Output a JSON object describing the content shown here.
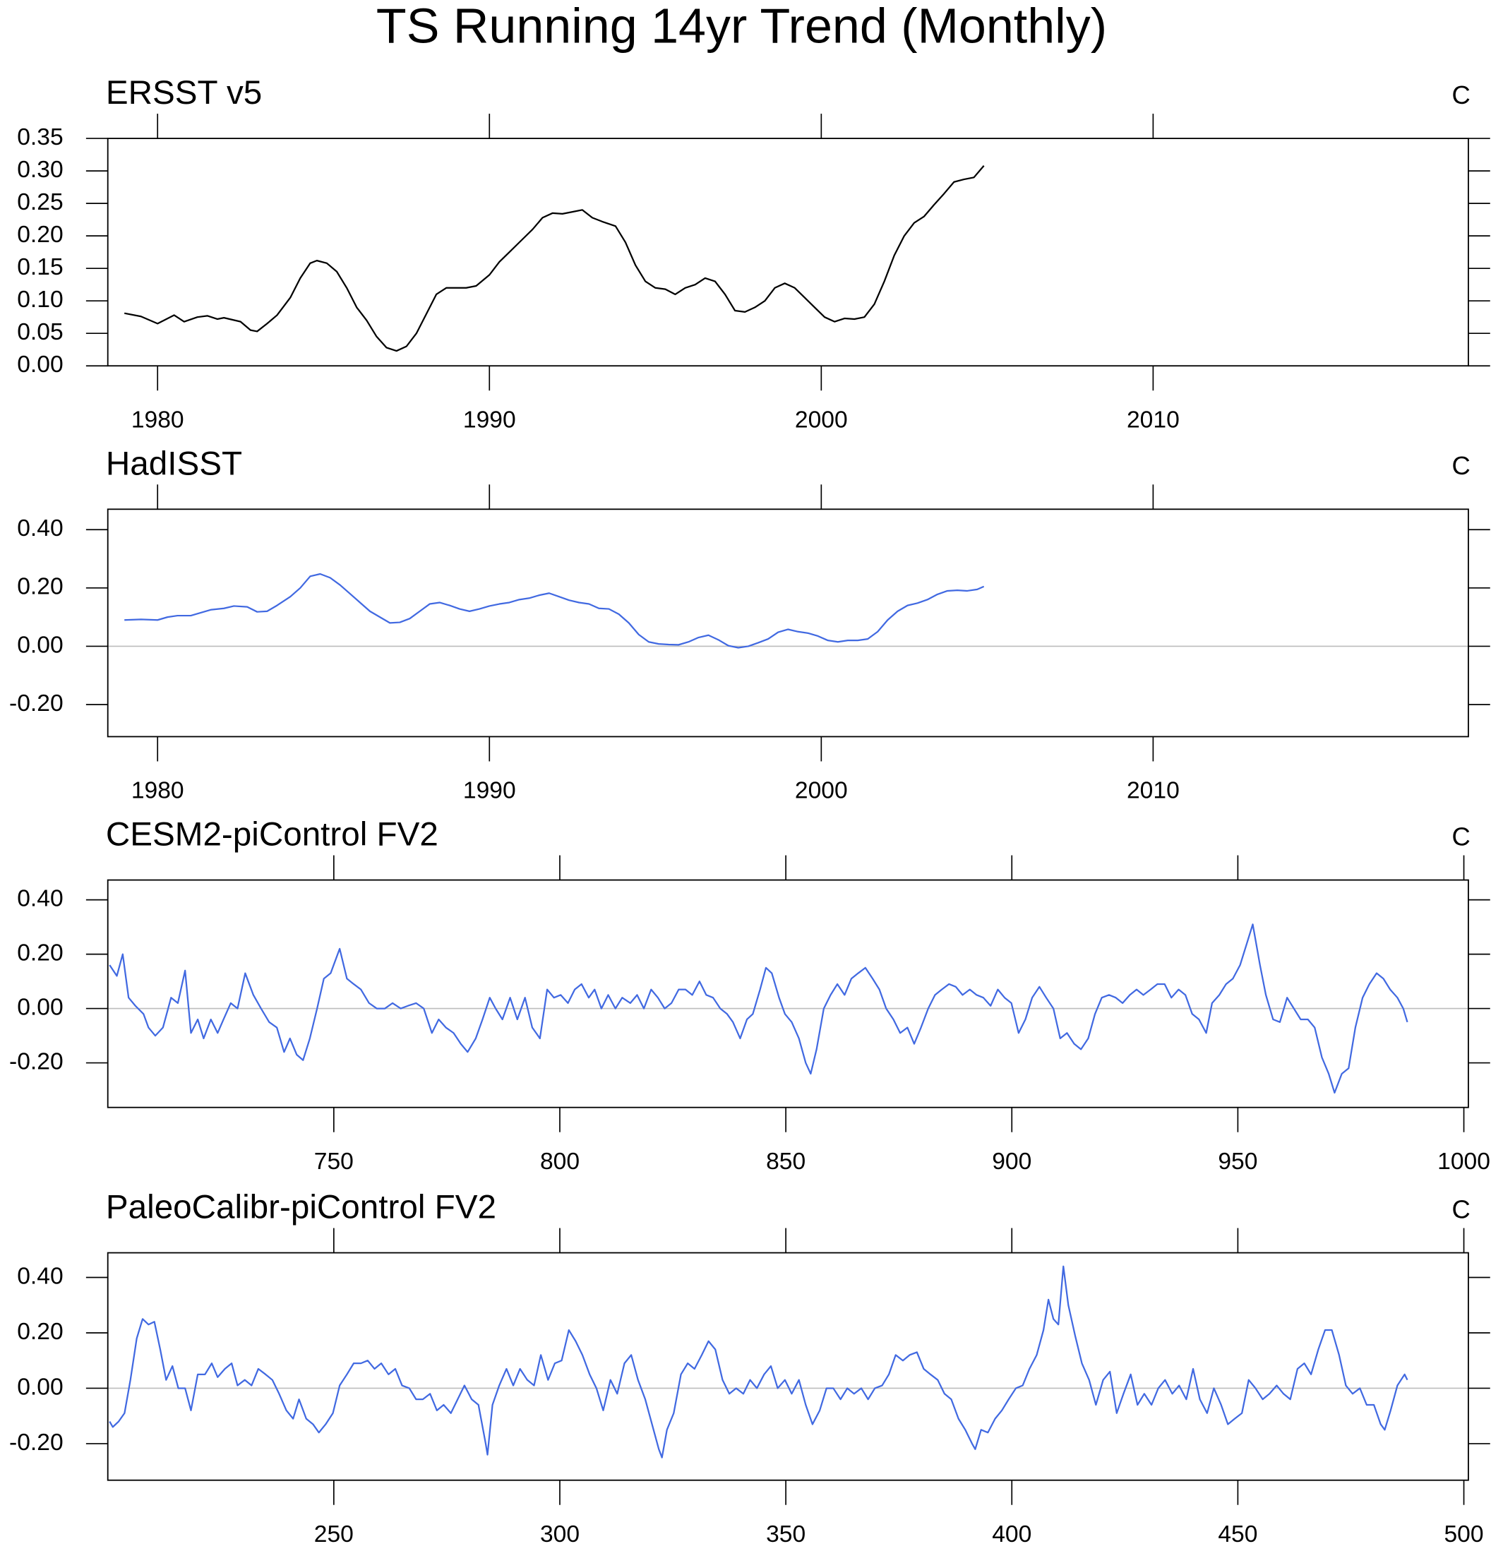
{
  "title": "TS Running 14yr Trend (Monthly)",
  "chart_data": [
    {
      "type": "line",
      "title": "ERSST v5",
      "units": "C",
      "color": "#000000",
      "xlim": [
        1978.5,
        2019.5
      ],
      "xticks": [
        1980,
        1990,
        2000,
        2010
      ],
      "ylim": [
        0,
        0.35
      ],
      "yticks": [
        {
          "value": 0,
          "label": "0.00"
        },
        0.05,
        {
          "value": 0.1,
          "label": "0.10"
        },
        0.15,
        {
          "value": 0.2,
          "label": "0.20"
        },
        0.25,
        {
          "value": 0.3,
          "label": "0.30"
        },
        0.35
      ],
      "x": [
        1979.0,
        1979.5,
        1980.0,
        1980.5,
        1980.8,
        1981.2,
        1981.5,
        1981.8,
        1982.0,
        1982.5,
        1982.8,
        1983.0,
        1983.3,
        1983.6,
        1984.0,
        1984.3,
        1984.6,
        1984.8,
        1985.1,
        1985.4,
        1985.7,
        1986.0,
        1986.3,
        1986.6,
        1986.9,
        1987.2,
        1987.5,
        1987.8,
        1988.1,
        1988.4,
        1988.7,
        1989.0,
        1989.3,
        1989.6,
        1990.0,
        1990.3,
        1990.6,
        1991.0,
        1991.3,
        1991.6,
        1991.9,
        1992.2,
        1992.5,
        1992.8,
        1993.1,
        1993.4,
        1993.8,
        1994.1,
        1994.4,
        1994.7,
        1995.0,
        1995.3,
        1995.6,
        1995.9,
        1996.2,
        1996.5,
        1996.8,
        1997.1,
        1997.4,
        1997.7,
        1998.0,
        1998.3,
        1998.6,
        1998.9,
        1999.2,
        1999.5,
        1999.8,
        2000.1,
        2000.4,
        2000.7,
        2001.0,
        2001.3,
        2001.6,
        2001.9,
        2002.2,
        2002.5,
        2002.8,
        2003.1,
        2003.4,
        2003.7,
        2004.0,
        2004.3,
        2004.6,
        2004.9
      ],
      "values": [
        0.081,
        0.076,
        0.065,
        0.078,
        0.068,
        0.075,
        0.077,
        0.072,
        0.074,
        0.068,
        0.055,
        0.053,
        0.065,
        0.078,
        0.105,
        0.135,
        0.158,
        0.162,
        0.158,
        0.145,
        0.12,
        0.09,
        0.07,
        0.045,
        0.028,
        0.023,
        0.03,
        0.05,
        0.08,
        0.11,
        0.12,
        0.12,
        0.12,
        0.123,
        0.14,
        0.16,
        0.175,
        0.195,
        0.21,
        0.228,
        0.235,
        0.234,
        0.237,
        0.24,
        0.228,
        0.222,
        0.215,
        0.19,
        0.155,
        0.13,
        0.12,
        0.118,
        0.11,
        0.12,
        0.125,
        0.135,
        0.13,
        0.11,
        0.085,
        0.083,
        0.09,
        0.1,
        0.12,
        0.127,
        0.12,
        0.105,
        0.09,
        0.075,
        0.068,
        0.073,
        0.072,
        0.075,
        0.095,
        0.13,
        0.17,
        0.2,
        0.22,
        0.23,
        0.248,
        0.265,
        0.283,
        0.287,
        0.29,
        0.308
      ]
    },
    {
      "type": "line",
      "title": "HadISST",
      "units": "C",
      "color": "#4169e1",
      "reference_line": 0,
      "xlim": [
        1978.5,
        2019.5
      ],
      "xticks": [
        1980,
        1990,
        2000,
        2010
      ],
      "ylim": [
        -0.31,
        0.47
      ],
      "yticks": [
        {
          "value": -0.2,
          "label": "-0.20"
        },
        {
          "value": 0,
          "label": "0.00"
        },
        {
          "value": 0.2,
          "label": "0.20"
        },
        {
          "value": 0.4,
          "label": "0.40"
        }
      ],
      "x": [
        1979.0,
        1979.5,
        1980.0,
        1980.3,
        1980.6,
        1981.0,
        1981.3,
        1981.6,
        1982.0,
        1982.3,
        1982.7,
        1983.0,
        1983.3,
        1983.6,
        1984.0,
        1984.3,
        1984.6,
        1984.9,
        1985.2,
        1985.5,
        1985.8,
        1986.1,
        1986.4,
        1986.7,
        1987.0,
        1987.3,
        1987.6,
        1987.9,
        1988.2,
        1988.5,
        1988.8,
        1989.1,
        1989.4,
        1989.7,
        1990.0,
        1990.3,
        1990.6,
        1990.9,
        1991.2,
        1991.5,
        1991.8,
        1992.1,
        1992.4,
        1992.7,
        1993.0,
        1993.3,
        1993.6,
        1993.9,
        1994.2,
        1994.5,
        1994.8,
        1995.1,
        1995.4,
        1995.7,
        1996.0,
        1996.3,
        1996.6,
        1996.9,
        1997.2,
        1997.5,
        1997.8,
        1998.1,
        1998.4,
        1998.7,
        1999.0,
        1999.3,
        1999.6,
        1999.9,
        2000.2,
        2000.5,
        2000.8,
        2001.1,
        2001.4,
        2001.7,
        2002.0,
        2002.3,
        2002.6,
        2002.9,
        2003.2,
        2003.5,
        2003.8,
        2004.1,
        2004.4,
        2004.7,
        2004.9
      ],
      "values": [
        0.09,
        0.092,
        0.09,
        0.1,
        0.105,
        0.105,
        0.115,
        0.125,
        0.13,
        0.138,
        0.135,
        0.118,
        0.12,
        0.14,
        0.17,
        0.2,
        0.24,
        0.248,
        0.235,
        0.21,
        0.18,
        0.15,
        0.12,
        0.1,
        0.08,
        0.082,
        0.095,
        0.12,
        0.145,
        0.15,
        0.14,
        0.128,
        0.12,
        0.128,
        0.138,
        0.145,
        0.15,
        0.16,
        0.165,
        0.175,
        0.182,
        0.17,
        0.158,
        0.15,
        0.145,
        0.13,
        0.128,
        0.11,
        0.08,
        0.04,
        0.015,
        0.008,
        0.006,
        0.005,
        0.015,
        0.03,
        0.038,
        0.022,
        0.002,
        -0.005,
        0.0,
        0.012,
        0.025,
        0.048,
        0.058,
        0.05,
        0.045,
        0.035,
        0.02,
        0.015,
        0.02,
        0.02,
        0.025,
        0.05,
        0.09,
        0.12,
        0.14,
        0.148,
        0.16,
        0.178,
        0.19,
        0.192,
        0.19,
        0.195,
        0.205
      ]
    },
    {
      "type": "line",
      "title": "CESM2-piControl FV2",
      "units": "C",
      "color": "#4169e1",
      "reference_line": 0,
      "xlim": [
        700,
        1001
      ],
      "xticks": [
        750,
        800,
        850,
        900,
        950,
        1000
      ],
      "ylim": [
        -0.364,
        0.473
      ],
      "yticks": [
        {
          "value": -0.2,
          "label": "-0.20"
        },
        {
          "value": 0,
          "label": "0.00"
        },
        {
          "value": 0.2,
          "label": "0.20"
        },
        {
          "value": 0.4,
          "label": "0.40"
        }
      ],
      "x": [
        700.4,
        702.0,
        703.3,
        704.6,
        706.1,
        707.9,
        709.0,
        710.5,
        712.2,
        714.0,
        715.5,
        717.1,
        718.4,
        719.9,
        721.2,
        722.8,
        724.3,
        725.6,
        727.2,
        728.7,
        730.4,
        732.2,
        733.9,
        735.7,
        737.4,
        739.0,
        740.3,
        741.8,
        743.2,
        744.7,
        746.3,
        747.8,
        749.3,
        751.3,
        752.9,
        754.4,
        756.0,
        757.8,
        759.5,
        761.3,
        763.0,
        764.8,
        766.4,
        768.2,
        769.9,
        771.7,
        773.2,
        774.8,
        776.5,
        778.1,
        779.6,
        781.4,
        782.9,
        784.5,
        785.8,
        787.3,
        789.0,
        790.6,
        792.3,
        793.9,
        795.6,
        797.2,
        798.7,
        800.2,
        801.8,
        803.3,
        804.8,
        806.4,
        807.7,
        809.2,
        810.7,
        812.3,
        813.8,
        815.6,
        817.1,
        818.6,
        820.2,
        821.7,
        823.2,
        824.7,
        826.3,
        827.8,
        829.3,
        830.9,
        832.4,
        833.9,
        835.5,
        837.0,
        838.3,
        839.9,
        841.4,
        842.7,
        844.3,
        845.6,
        846.9,
        848.5,
        849.8,
        851.3,
        852.9,
        854.4,
        855.5,
        856.8,
        858.4,
        859.9,
        861.4,
        863.0,
        864.5,
        866.0,
        867.6,
        869.2,
        870.7,
        872.2,
        873.8,
        875.3,
        876.9,
        878.4,
        879.9,
        881.5,
        883.0,
        884.5,
        886.1,
        887.6,
        889.1,
        890.7,
        892.2,
        893.7,
        895.3,
        896.9,
        898.4,
        899.9,
        901.5,
        903.0,
        904.5,
        906.1,
        907.6,
        909.2,
        910.7,
        912.2,
        913.8,
        915.3,
        916.9,
        918.4,
        919.9,
        921.5,
        923.0,
        924.5,
        926.1,
        927.6,
        929.1,
        930.7,
        932.2,
        933.8,
        935.3,
        936.9,
        938.4,
        939.9,
        941.4,
        943.0,
        944.3,
        945.9,
        947.4,
        948.9,
        950.5,
        952.0,
        953.3,
        954.9,
        956.2,
        957.8,
        959.3,
        960.9,
        962.4,
        963.9,
        965.5,
        967.0,
        968.6,
        970.1,
        971.4,
        973.0,
        974.5,
        976.0,
        977.6,
        979.1,
        980.7,
        982.2,
        983.7,
        985.3,
        986.6,
        987.5
      ],
      "values": [
        0.16,
        0.12,
        0.2,
        0.04,
        0.01,
        -0.02,
        -0.07,
        -0.1,
        -0.07,
        0.04,
        0.02,
        0.14,
        -0.09,
        -0.04,
        -0.11,
        -0.04,
        -0.09,
        -0.04,
        0.02,
        0,
        0.13,
        0.05,
        0,
        -0.05,
        -0.07,
        -0.16,
        -0.11,
        -0.17,
        -0.19,
        -0.11,
        0,
        0.11,
        0.13,
        0.22,
        0.11,
        0.09,
        0.07,
        0.02,
        0,
        0,
        0.02,
        0,
        0.01,
        0.02,
        0,
        -0.09,
        -0.04,
        -0.07,
        -0.09,
        -0.13,
        -0.16,
        -0.11,
        -0.04,
        0.04,
        0,
        -0.04,
        0.04,
        -0.04,
        0.04,
        -0.07,
        -0.11,
        0.07,
        0.04,
        0.05,
        0.02,
        0.07,
        0.09,
        0.04,
        0.07,
        0,
        0.05,
        0,
        0.04,
        0.02,
        0.05,
        0,
        0.07,
        0.04,
        0,
        0.02,
        0.07,
        0.07,
        0.05,
        0.1,
        0.05,
        0.04,
        0,
        -0.02,
        -0.05,
        -0.11,
        -0.04,
        -0.02,
        0.07,
        0.15,
        0.13,
        0.04,
        -0.02,
        -0.05,
        -0.11,
        -0.2,
        -0.24,
        -0.15,
        0,
        0.05,
        0.09,
        0.05,
        0.11,
        0.13,
        0.15,
        0.11,
        0.07,
        0,
        -0.04,
        -0.09,
        -0.07,
        -0.13,
        -0.07,
        0,
        0.05,
        0.07,
        0.09,
        0.08,
        0.05,
        0.07,
        0.05,
        0.04,
        0.01,
        0.07,
        0.04,
        0.02,
        -0.09,
        -0.04,
        0.04,
        0.08,
        0.04,
        0,
        -0.11,
        -0.09,
        -0.13,
        -0.15,
        -0.11,
        -0.02,
        0.04,
        0.05,
        0.04,
        0.02,
        0.05,
        0.07,
        0.05,
        0.07,
        0.09,
        0.09,
        0.04,
        0.07,
        0.05,
        -0.02,
        -0.04,
        -0.09,
        0.02,
        0.05,
        0.09,
        0.11,
        0.16,
        0.24,
        0.31,
        0.16,
        0.05,
        -0.04,
        -0.05,
        0.04,
        0,
        -0.04,
        -0.04,
        -0.07,
        -0.18,
        -0.24,
        -0.31,
        -0.24,
        -0.22,
        -0.07,
        0.04,
        0.09,
        0.13,
        0.11,
        0.07,
        0.04,
        0,
        -0.05
      ]
    },
    {
      "type": "line",
      "title": "PaleoCalibr-piControl FV2",
      "units": "C",
      "color": "#4169e1",
      "reference_line": 0,
      "xlim": [
        200,
        501
      ],
      "xticks": [
        250,
        300,
        350,
        400,
        450,
        500
      ],
      "ylim": [
        -0.332,
        0.489
      ],
      "yticks": [
        {
          "value": -0.2,
          "label": "-0.20"
        },
        {
          "value": 0,
          "label": "0.00"
        },
        {
          "value": 0.2,
          "label": "0.20"
        },
        {
          "value": 0.4,
          "label": "0.40"
        }
      ],
      "x": [
        200.4,
        201.1,
        202.4,
        203.7,
        205.0,
        206.4,
        207.7,
        209.0,
        210.3,
        211.6,
        212.9,
        214.3,
        215.6,
        217.1,
        218.4,
        219.9,
        221.5,
        223.0,
        224.3,
        225.9,
        227.4,
        228.7,
        230.3,
        231.8,
        233.3,
        234.9,
        236.4,
        237.9,
        239.5,
        241.0,
        242.3,
        243.9,
        245.4,
        246.7,
        248.2,
        249.8,
        251.3,
        252.9,
        254.4,
        256.0,
        257.5,
        259.0,
        260.5,
        262.1,
        263.6,
        265.1,
        266.7,
        268.2,
        269.7,
        271.3,
        272.8,
        274.3,
        275.9,
        277.4,
        278.9,
        280.5,
        282.0,
        283.6,
        284.0,
        285.1,
        286.6,
        288.2,
        289.7,
        291.2,
        292.8,
        294.3,
        295.8,
        297.4,
        298.9,
        300.4,
        302.0,
        303.5,
        305.0,
        306.6,
        308.1,
        309.6,
        311.2,
        312.7,
        314.3,
        315.8,
        317.3,
        318.9,
        320.4,
        321.9,
        322.6,
        323.7,
        325.2,
        326.8,
        328.3,
        329.8,
        331.4,
        332.9,
        334.4,
        336.0,
        337.5,
        339.0,
        340.6,
        342.1,
        343.6,
        345.2,
        346.7,
        348.2,
        349.8,
        351.3,
        352.9,
        354.4,
        355.9,
        357.5,
        359.0,
        360.5,
        362.1,
        363.6,
        365.1,
        366.7,
        368.2,
        369.7,
        371.3,
        372.8,
        374.3,
        375.9,
        377.4,
        379.0,
        380.5,
        382.0,
        383.6,
        385.1,
        386.6,
        388.2,
        389.7,
        391.2,
        391.9,
        393.2,
        394.7,
        396.3,
        397.8,
        399.3,
        400.9,
        402.4,
        403.9,
        405.5,
        407.0,
        408.1,
        409.2,
        410.3,
        411.4,
        412.5,
        414.0,
        415.5,
        417.1,
        418.6,
        420.2,
        421.7,
        423.2,
        424.7,
        426.3,
        427.8,
        429.3,
        430.9,
        432.4,
        433.9,
        435.5,
        437.0,
        438.6,
        440.1,
        441.6,
        443.2,
        444.7,
        446.3,
        447.8,
        449.3,
        450.9,
        452.4,
        453.9,
        455.5,
        457.0,
        458.6,
        460.1,
        461.6,
        463.2,
        464.7,
        466.2,
        467.8,
        469.3,
        470.8,
        472.4,
        473.9,
        475.4,
        477.0,
        478.5,
        480.1,
        481.6,
        482.5,
        483.8,
        485.3,
        486.9,
        487.5
      ],
      "values": [
        -0.12,
        -0.14,
        -0.12,
        -0.09,
        0.03,
        0.18,
        0.25,
        0.23,
        0.24,
        0.14,
        0.03,
        0.08,
        0,
        0,
        -0.08,
        0.05,
        0.05,
        0.09,
        0.04,
        0.07,
        0.09,
        0.01,
        0.03,
        0.01,
        0.07,
        0.05,
        0.03,
        -0.02,
        -0.08,
        -0.11,
        -0.04,
        -0.11,
        -0.13,
        -0.16,
        -0.13,
        -0.09,
        0.01,
        0.05,
        0.09,
        0.09,
        0.1,
        0.07,
        0.09,
        0.05,
        0.07,
        0.01,
        0,
        -0.04,
        -0.04,
        -0.02,
        -0.08,
        -0.06,
        -0.09,
        -0.04,
        0.01,
        -0.04,
        -0.06,
        -0.2,
        -0.24,
        -0.06,
        0.01,
        0.07,
        0.01,
        0.07,
        0.03,
        0.01,
        0.12,
        0.03,
        0.09,
        0.1,
        0.21,
        0.17,
        0.12,
        0.05,
        0,
        -0.08,
        0.03,
        -0.02,
        0.09,
        0.12,
        0.03,
        -0.04,
        -0.13,
        -0.22,
        -0.25,
        -0.15,
        -0.09,
        0.05,
        0.09,
        0.07,
        0.12,
        0.17,
        0.14,
        0.03,
        -0.02,
        0,
        -0.02,
        0.03,
        0,
        0.05,
        0.08,
        0,
        0.03,
        -0.02,
        0.03,
        -0.06,
        -0.13,
        -0.08,
        0,
        0,
        -0.04,
        0,
        -0.02,
        0,
        -0.04,
        0,
        0.01,
        0.05,
        0.12,
        0.1,
        0.12,
        0.13,
        0.07,
        0.05,
        0.03,
        -0.02,
        -0.04,
        -0.11,
        -0.15,
        -0.2,
        -0.22,
        -0.15,
        -0.16,
        -0.11,
        -0.08,
        -0.04,
        0,
        0.01,
        0.07,
        0.12,
        0.21,
        0.32,
        0.25,
        0.23,
        0.44,
        0.3,
        0.19,
        0.09,
        0.03,
        -0.06,
        0.03,
        0.06,
        -0.09,
        -0.02,
        0.05,
        -0.06,
        -0.02,
        -0.06,
        0,
        0.03,
        -0.02,
        0.01,
        -0.04,
        0.07,
        -0.04,
        -0.09,
        0,
        -0.06,
        -0.13,
        -0.11,
        -0.09,
        0.03,
        0,
        -0.04,
        -0.02,
        0.01,
        -0.02,
        -0.04,
        0.07,
        0.09,
        0.05,
        0.14,
        0.21,
        0.21,
        0.12,
        0.01,
        -0.02,
        0,
        -0.06,
        -0.06,
        -0.13,
        -0.15,
        -0.08,
        0.01,
        0.05,
        0.03
      ]
    }
  ]
}
